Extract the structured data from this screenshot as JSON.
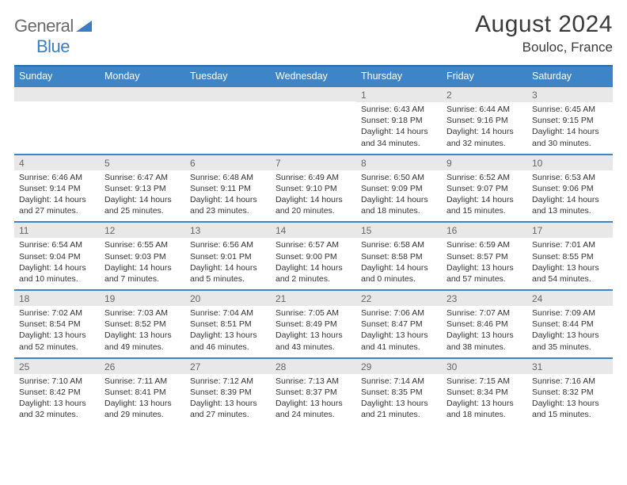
{
  "brand": {
    "part1": "General",
    "part2": "Blue",
    "accent_color": "#3d7dbf"
  },
  "title": "August 2024",
  "location": "Bouloc, France",
  "colors": {
    "header_bg": "#3d85c6",
    "header_border": "#2f6aa3",
    "row_border": "#3d85c6",
    "daynum_bg": "#e8e8e8",
    "text": "#333333",
    "muted": "#666666"
  },
  "day_headers": [
    "Sunday",
    "Monday",
    "Tuesday",
    "Wednesday",
    "Thursday",
    "Friday",
    "Saturday"
  ],
  "weeks": [
    [
      {
        "n": "",
        "sr": "",
        "ss": "",
        "dl": ""
      },
      {
        "n": "",
        "sr": "",
        "ss": "",
        "dl": ""
      },
      {
        "n": "",
        "sr": "",
        "ss": "",
        "dl": ""
      },
      {
        "n": "",
        "sr": "",
        "ss": "",
        "dl": ""
      },
      {
        "n": "1",
        "sr": "6:43 AM",
        "ss": "9:18 PM",
        "dl": "14 hours and 34 minutes."
      },
      {
        "n": "2",
        "sr": "6:44 AM",
        "ss": "9:16 PM",
        "dl": "14 hours and 32 minutes."
      },
      {
        "n": "3",
        "sr": "6:45 AM",
        "ss": "9:15 PM",
        "dl": "14 hours and 30 minutes."
      }
    ],
    [
      {
        "n": "4",
        "sr": "6:46 AM",
        "ss": "9:14 PM",
        "dl": "14 hours and 27 minutes."
      },
      {
        "n": "5",
        "sr": "6:47 AM",
        "ss": "9:13 PM",
        "dl": "14 hours and 25 minutes."
      },
      {
        "n": "6",
        "sr": "6:48 AM",
        "ss": "9:11 PM",
        "dl": "14 hours and 23 minutes."
      },
      {
        "n": "7",
        "sr": "6:49 AM",
        "ss": "9:10 PM",
        "dl": "14 hours and 20 minutes."
      },
      {
        "n": "8",
        "sr": "6:50 AM",
        "ss": "9:09 PM",
        "dl": "14 hours and 18 minutes."
      },
      {
        "n": "9",
        "sr": "6:52 AM",
        "ss": "9:07 PM",
        "dl": "14 hours and 15 minutes."
      },
      {
        "n": "10",
        "sr": "6:53 AM",
        "ss": "9:06 PM",
        "dl": "14 hours and 13 minutes."
      }
    ],
    [
      {
        "n": "11",
        "sr": "6:54 AM",
        "ss": "9:04 PM",
        "dl": "14 hours and 10 minutes."
      },
      {
        "n": "12",
        "sr": "6:55 AM",
        "ss": "9:03 PM",
        "dl": "14 hours and 7 minutes."
      },
      {
        "n": "13",
        "sr": "6:56 AM",
        "ss": "9:01 PM",
        "dl": "14 hours and 5 minutes."
      },
      {
        "n": "14",
        "sr": "6:57 AM",
        "ss": "9:00 PM",
        "dl": "14 hours and 2 minutes."
      },
      {
        "n": "15",
        "sr": "6:58 AM",
        "ss": "8:58 PM",
        "dl": "14 hours and 0 minutes."
      },
      {
        "n": "16",
        "sr": "6:59 AM",
        "ss": "8:57 PM",
        "dl": "13 hours and 57 minutes."
      },
      {
        "n": "17",
        "sr": "7:01 AM",
        "ss": "8:55 PM",
        "dl": "13 hours and 54 minutes."
      }
    ],
    [
      {
        "n": "18",
        "sr": "7:02 AM",
        "ss": "8:54 PM",
        "dl": "13 hours and 52 minutes."
      },
      {
        "n": "19",
        "sr": "7:03 AM",
        "ss": "8:52 PM",
        "dl": "13 hours and 49 minutes."
      },
      {
        "n": "20",
        "sr": "7:04 AM",
        "ss": "8:51 PM",
        "dl": "13 hours and 46 minutes."
      },
      {
        "n": "21",
        "sr": "7:05 AM",
        "ss": "8:49 PM",
        "dl": "13 hours and 43 minutes."
      },
      {
        "n": "22",
        "sr": "7:06 AM",
        "ss": "8:47 PM",
        "dl": "13 hours and 41 minutes."
      },
      {
        "n": "23",
        "sr": "7:07 AM",
        "ss": "8:46 PM",
        "dl": "13 hours and 38 minutes."
      },
      {
        "n": "24",
        "sr": "7:09 AM",
        "ss": "8:44 PM",
        "dl": "13 hours and 35 minutes."
      }
    ],
    [
      {
        "n": "25",
        "sr": "7:10 AM",
        "ss": "8:42 PM",
        "dl": "13 hours and 32 minutes."
      },
      {
        "n": "26",
        "sr": "7:11 AM",
        "ss": "8:41 PM",
        "dl": "13 hours and 29 minutes."
      },
      {
        "n": "27",
        "sr": "7:12 AM",
        "ss": "8:39 PM",
        "dl": "13 hours and 27 minutes."
      },
      {
        "n": "28",
        "sr": "7:13 AM",
        "ss": "8:37 PM",
        "dl": "13 hours and 24 minutes."
      },
      {
        "n": "29",
        "sr": "7:14 AM",
        "ss": "8:35 PM",
        "dl": "13 hours and 21 minutes."
      },
      {
        "n": "30",
        "sr": "7:15 AM",
        "ss": "8:34 PM",
        "dl": "13 hours and 18 minutes."
      },
      {
        "n": "31",
        "sr": "7:16 AM",
        "ss": "8:32 PM",
        "dl": "13 hours and 15 minutes."
      }
    ]
  ],
  "labels": {
    "sunrise": "Sunrise:",
    "sunset": "Sunset:",
    "daylight": "Daylight:"
  }
}
